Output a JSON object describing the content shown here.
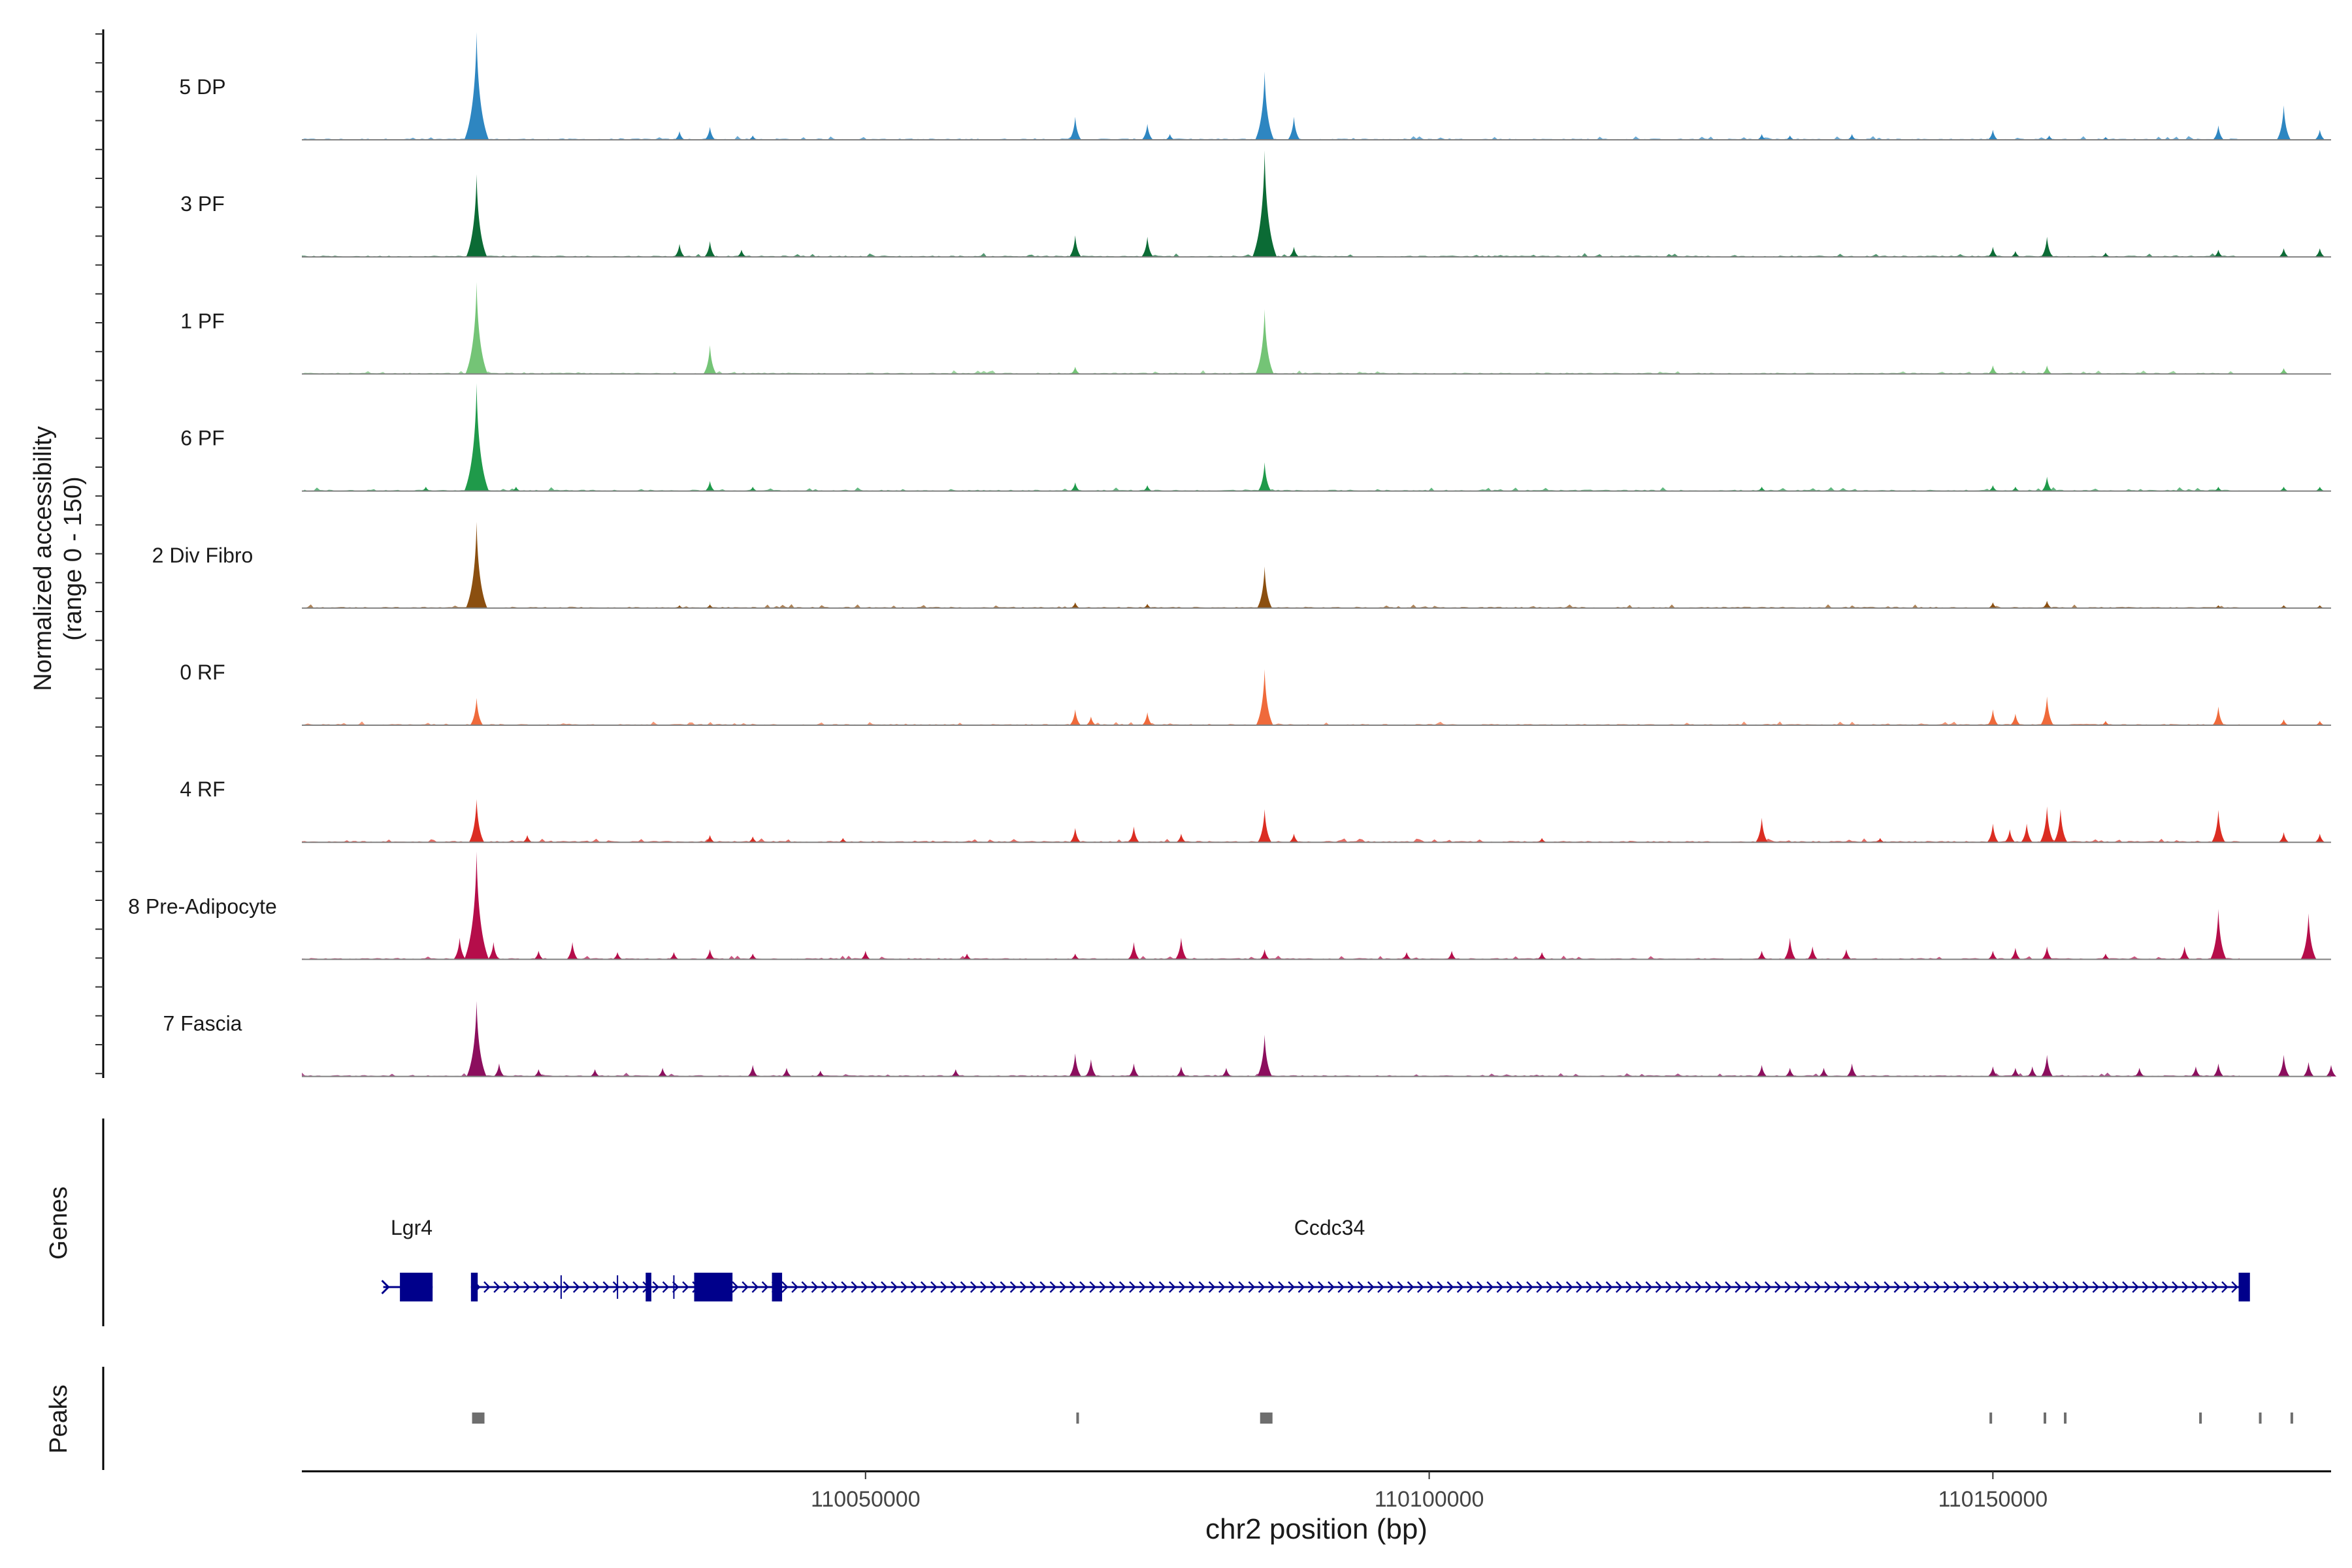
{
  "chart_data": {
    "type": "coverage-track",
    "title": "",
    "ylabel_line1": "Normalized accessibility",
    "ylabel_line2": "(range 0 - 150)",
    "xlabel": "chr2 position (bp)",
    "xlim": [
      110000000,
      110180000
    ],
    "yrange": [
      0,
      150
    ],
    "xticks": [
      110050000,
      110100000,
      110150000
    ],
    "xtick_labels": [
      "110050000",
      "110100000",
      "110150000"
    ],
    "tracks": [
      {
        "name": "5 DP",
        "color": "#2e86c1",
        "peaks": [
          [
            110015500,
            150
          ],
          [
            110033500,
            12
          ],
          [
            110036200,
            18
          ],
          [
            110040000,
            6
          ],
          [
            110068600,
            32
          ],
          [
            110075000,
            22
          ],
          [
            110077000,
            8
          ],
          [
            110085400,
            95
          ],
          [
            110088000,
            32
          ],
          [
            110129500,
            8
          ],
          [
            110132000,
            6
          ],
          [
            110137500,
            8
          ],
          [
            110150000,
            14
          ],
          [
            110155000,
            6
          ],
          [
            110160000,
            4
          ],
          [
            110170000,
            20
          ],
          [
            110175800,
            48
          ],
          [
            110179000,
            14
          ]
        ]
      },
      {
        "name": "3 PF",
        "color": "#0b6b35",
        "peaks": [
          [
            110015500,
            115
          ],
          [
            110033500,
            18
          ],
          [
            110036200,
            22
          ],
          [
            110039000,
            10
          ],
          [
            110068600,
            30
          ],
          [
            110075000,
            28
          ],
          [
            110085400,
            148
          ],
          [
            110088000,
            14
          ],
          [
            110150000,
            14
          ],
          [
            110152000,
            8
          ],
          [
            110154800,
            28
          ],
          [
            110160000,
            6
          ],
          [
            110170000,
            10
          ],
          [
            110175800,
            12
          ],
          [
            110179000,
            12
          ]
        ]
      },
      {
        "name": "1 PF",
        "color": "#74c476",
        "peaks": [
          [
            110015500,
            128
          ],
          [
            110036200,
            40
          ],
          [
            110068600,
            10
          ],
          [
            110085400,
            90
          ],
          [
            110150000,
            12
          ],
          [
            110154800,
            12
          ],
          [
            110175800,
            8
          ]
        ]
      },
      {
        "name": "6 PF",
        "color": "#1f9a4a",
        "peaks": [
          [
            110011000,
            6
          ],
          [
            110015500,
            150
          ],
          [
            110019000,
            6
          ],
          [
            110036200,
            14
          ],
          [
            110040000,
            6
          ],
          [
            110068600,
            12
          ],
          [
            110075000,
            8
          ],
          [
            110085400,
            40
          ],
          [
            110129500,
            6
          ],
          [
            110150000,
            8
          ],
          [
            110152000,
            6
          ],
          [
            110154800,
            20
          ],
          [
            110170000,
            6
          ],
          [
            110175800,
            6
          ],
          [
            110179000,
            6
          ]
        ]
      },
      {
        "name": "2 Div Fibro",
        "color": "#8b4f10",
        "peaks": [
          [
            110015500,
            120
          ],
          [
            110033500,
            4
          ],
          [
            110036200,
            5
          ],
          [
            110068600,
            8
          ],
          [
            110075000,
            6
          ],
          [
            110085400,
            58
          ],
          [
            110150000,
            8
          ],
          [
            110154800,
            10
          ],
          [
            110170000,
            4
          ],
          [
            110175800,
            4
          ],
          [
            110179000,
            4
          ]
        ]
      },
      {
        "name": "0 RF",
        "color": "#ef6a3b",
        "peaks": [
          [
            110015500,
            38
          ],
          [
            110068600,
            22
          ],
          [
            110070000,
            12
          ],
          [
            110075000,
            18
          ],
          [
            110085400,
            78
          ],
          [
            110150000,
            22
          ],
          [
            110152000,
            16
          ],
          [
            110154800,
            40
          ],
          [
            110160000,
            6
          ],
          [
            110170000,
            26
          ],
          [
            110175800,
            8
          ],
          [
            110179000,
            6
          ]
        ]
      },
      {
        "name": "4 RF",
        "color": "#db2d22",
        "peaks": [
          [
            110015500,
            60
          ],
          [
            110020000,
            10
          ],
          [
            110036200,
            10
          ],
          [
            110040000,
            8
          ],
          [
            110048000,
            6
          ],
          [
            110068600,
            20
          ],
          [
            110073800,
            22
          ],
          [
            110078000,
            12
          ],
          [
            110085400,
            46
          ],
          [
            110088000,
            12
          ],
          [
            110110000,
            6
          ],
          [
            110129500,
            34
          ],
          [
            110140000,
            6
          ],
          [
            110150000,
            26
          ],
          [
            110151500,
            18
          ],
          [
            110153000,
            26
          ],
          [
            110154800,
            50
          ],
          [
            110156000,
            46
          ],
          [
            110170000,
            45
          ],
          [
            110175800,
            14
          ],
          [
            110179000,
            12
          ]
        ]
      },
      {
        "name": "8 Pre-Adipocyte",
        "color": "#b50d4a",
        "peaks": [
          [
            110014000,
            30
          ],
          [
            110015500,
            150
          ],
          [
            110017000,
            24
          ],
          [
            110021000,
            12
          ],
          [
            110024000,
            24
          ],
          [
            110028000,
            10
          ],
          [
            110033000,
            10
          ],
          [
            110036200,
            14
          ],
          [
            110040000,
            8
          ],
          [
            110050000,
            12
          ],
          [
            110059000,
            8
          ],
          [
            110068600,
            8
          ],
          [
            110073800,
            24
          ],
          [
            110078000,
            30
          ],
          [
            110085400,
            14
          ],
          [
            110098000,
            10
          ],
          [
            110102000,
            12
          ],
          [
            110110000,
            10
          ],
          [
            110129500,
            12
          ],
          [
            110132000,
            30
          ],
          [
            110134000,
            18
          ],
          [
            110137000,
            14
          ],
          [
            110150000,
            12
          ],
          [
            110152000,
            16
          ],
          [
            110154800,
            18
          ],
          [
            110160000,
            8
          ],
          [
            110167000,
            18
          ],
          [
            110170000,
            70
          ],
          [
            110178000,
            64
          ]
        ]
      },
      {
        "name": "7 Fascia",
        "color": "#8c0e5e",
        "peaks": [
          [
            110015500,
            105
          ],
          [
            110017500,
            18
          ],
          [
            110021000,
            10
          ],
          [
            110026000,
            10
          ],
          [
            110032000,
            12
          ],
          [
            110040000,
            16
          ],
          [
            110043000,
            12
          ],
          [
            110046000,
            8
          ],
          [
            110058000,
            10
          ],
          [
            110068600,
            32
          ],
          [
            110070000,
            24
          ],
          [
            110073800,
            18
          ],
          [
            110078000,
            14
          ],
          [
            110082000,
            12
          ],
          [
            110085400,
            58
          ],
          [
            110129500,
            16
          ],
          [
            110132000,
            12
          ],
          [
            110135000,
            12
          ],
          [
            110137500,
            18
          ],
          [
            110150000,
            14
          ],
          [
            110152000,
            12
          ],
          [
            110153500,
            14
          ],
          [
            110154800,
            30
          ],
          [
            110163000,
            12
          ],
          [
            110168000,
            14
          ],
          [
            110170000,
            18
          ],
          [
            110175800,
            30
          ],
          [
            110178000,
            20
          ],
          [
            110180000,
            16
          ]
        ]
      }
    ],
    "genes_label": "Genes",
    "genes": [
      {
        "name": "Lgr4",
        "start": 110007800,
        "end": 110010800,
        "exons": [
          [
            110008700,
            110011600
          ]
        ]
      },
      {
        "name": "Ccdc34",
        "start": 110015000,
        "end": 110172500,
        "exons": [
          [
            110015000,
            110015600
          ],
          [
            110030500,
            110031000
          ],
          [
            110034800,
            110038200
          ],
          [
            110041700,
            110042600
          ],
          [
            110171800,
            110172800
          ]
        ]
      }
    ],
    "peaks_label": "Peaks",
    "peak_regions": [
      [
        110015100,
        110016200
      ],
      [
        110068700,
        110068900
      ],
      [
        110085000,
        110086100
      ],
      [
        110149700,
        110149900
      ],
      [
        110154500,
        110154700
      ],
      [
        110156300,
        110156400
      ],
      [
        110168300,
        110168500
      ],
      [
        110173600,
        110173800
      ],
      [
        110176400,
        110176600
      ]
    ]
  }
}
